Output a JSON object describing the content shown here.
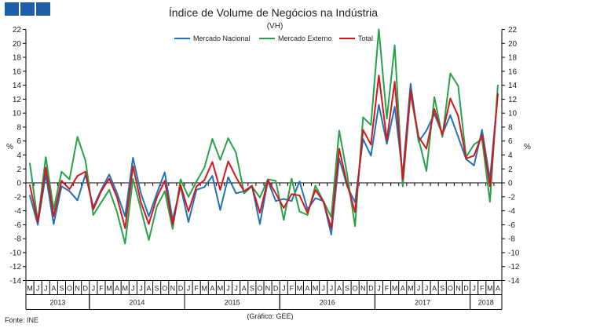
{
  "header_badges": [
    "",
    "",
    ""
  ],
  "chart_data": {
    "type": "line",
    "title": "Índice de Volume de Negócios na Indústria",
    "subtitle": "(VH)",
    "ylabel_left": "%",
    "ylabel_right": "%",
    "ylim": [
      -14,
      22
    ],
    "yticks": [
      -14,
      -12,
      -10,
      -8,
      -6,
      -4,
      -2,
      0,
      2,
      4,
      6,
      8,
      10,
      12,
      14,
      16,
      18,
      20,
      22
    ],
    "grid": false,
    "legend": "top-center",
    "months": [
      "M",
      "J",
      "J",
      "A",
      "S",
      "O",
      "N",
      "D",
      "J",
      "F",
      "M",
      "A",
      "M",
      "J",
      "J",
      "A",
      "S",
      "O",
      "N",
      "D",
      "J",
      "F",
      "M",
      "A",
      "M",
      "J",
      "J",
      "A",
      "S",
      "O",
      "N",
      "D",
      "J",
      "F",
      "M",
      "A",
      "M",
      "J",
      "J",
      "A",
      "S",
      "O",
      "N",
      "D",
      "J",
      "F",
      "M",
      "A",
      "M",
      "J",
      "J",
      "A",
      "S",
      "O",
      "N",
      "D",
      "J",
      "F",
      "M",
      "A"
    ],
    "years": [
      {
        "label": "2013",
        "start": 0,
        "end": 7
      },
      {
        "label": "2014",
        "start": 8,
        "end": 19
      },
      {
        "label": "2015",
        "start": 20,
        "end": 31
      },
      {
        "label": "2016",
        "start": 32,
        "end": 43
      },
      {
        "label": "2017",
        "start": 44,
        "end": 55
      },
      {
        "label": "2018",
        "start": 56,
        "end": 59
      }
    ],
    "series": [
      {
        "name": "Mercado Nacional",
        "color": "#2372b8",
        "values": [
          -1.8,
          -6.0,
          1.2,
          -5.9,
          -0.5,
          -1.2,
          -2.5,
          1.2,
          -3.5,
          -1.0,
          1.2,
          -1.5,
          -4.8,
          3.6,
          -1.5,
          -4.8,
          -1.5,
          1.5,
          -5.3,
          -0.5,
          -5.6,
          -1.0,
          -0.6,
          1.0,
          -3.9,
          0.8,
          -1.5,
          -1.2,
          -0.4,
          -5.9,
          0.3,
          -2.6,
          -2.3,
          -2.6,
          0.2,
          -3.8,
          -2.2,
          -2.6,
          -7.4,
          3.5,
          -0.5,
          -2.8,
          6.3,
          3.9,
          11.2,
          5.6,
          10.9,
          1.2,
          14.2,
          5.9,
          7.5,
          9.9,
          7.0,
          9.7,
          6.6,
          3.4,
          2.5,
          7.6,
          0.5,
          12.8
        ]
      },
      {
        "name": "Mercado Externo",
        "color": "#27a24a",
        "values": [
          2.8,
          -5.5,
          3.7,
          -3.8,
          1.6,
          0.5,
          6.6,
          3.2,
          -4.6,
          -2.8,
          -1.0,
          -4.2,
          -8.7,
          0.6,
          -3.8,
          -8.2,
          -3.4,
          -1.2,
          -6.6,
          0.5,
          -2.0,
          0.2,
          2.2,
          6.3,
          3.3,
          6.4,
          4.3,
          -1.5,
          -0.5,
          -2.1,
          0.5,
          0.3,
          -5.3,
          0.6,
          -4.1,
          -4.6,
          -0.4,
          -2.6,
          -4.9,
          7.5,
          1.2,
          -6.2,
          9.4,
          8.3,
          22.0,
          9.2,
          19.7,
          -0.5,
          12.8,
          6.3,
          1.7,
          12.3,
          6.6,
          15.7,
          13.9,
          3.7,
          5.5,
          6.3,
          -2.7,
          14.0
        ]
      },
      {
        "name": "Total",
        "color": "#d4171e",
        "values": [
          -0.3,
          -5.6,
          2.2,
          -4.8,
          0.3,
          -0.9,
          1.0,
          1.6,
          -3.8,
          -1.2,
          0.6,
          -2.1,
          -6.5,
          2.4,
          -2.8,
          -5.9,
          -2.1,
          0.3,
          -6.0,
          -0.3,
          -4.1,
          -0.5,
          0.4,
          3.0,
          -1.0,
          3.1,
          0.8,
          -1.2,
          -0.5,
          -4.3,
          0.4,
          -1.5,
          -3.6,
          -1.6,
          -1.8,
          -4.3,
          -1.0,
          -2.7,
          -6.5,
          4.9,
          -0.2,
          -4.2,
          7.6,
          5.5,
          15.4,
          6.1,
          14.5,
          0.5,
          13.2,
          6.6,
          4.9,
          10.6,
          6.9,
          12.1,
          9.6,
          3.5,
          3.9,
          6.9,
          -0.5,
          12.7
        ]
      }
    ],
    "source": "Fonte:  INE",
    "credit": "(Gráfico:  GEE)"
  }
}
